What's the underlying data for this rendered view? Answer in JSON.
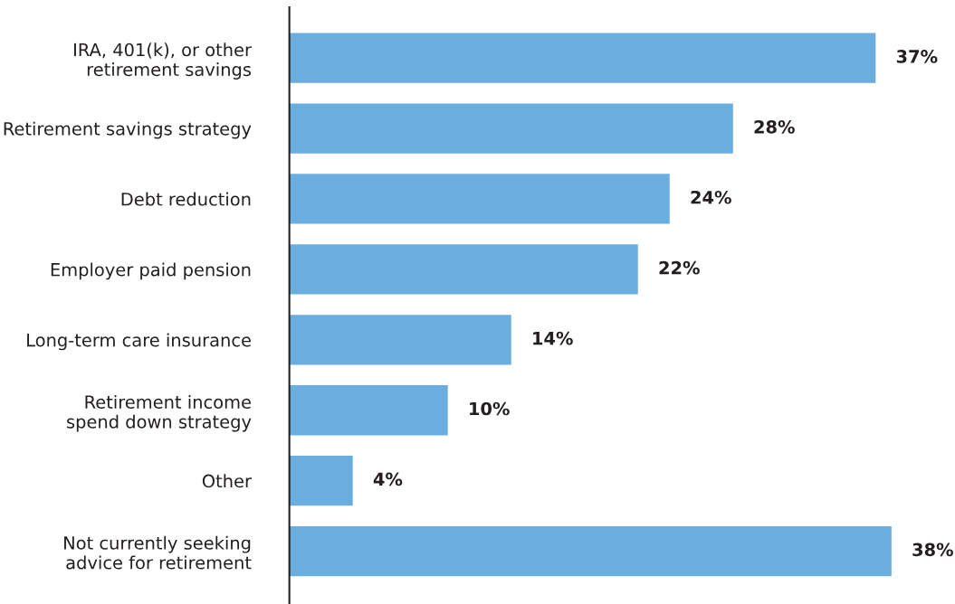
{
  "chart_data": {
    "type": "bar",
    "orientation": "horizontal",
    "categories": [
      "IRA, 401(k), or other\nretirement savings",
      "Retirement savings strategy",
      "Debt reduction",
      "Employer paid pension",
      "Long-term care insurance",
      "Retirement income\nspend down strategy",
      "Other",
      "Not currently seeking\nadvice for retirement"
    ],
    "values": [
      37,
      28,
      24,
      22,
      14,
      10,
      4,
      38
    ],
    "value_labels": [
      "37%",
      "28%",
      "24%",
      "22%",
      "14%",
      "10%",
      "4%",
      "38%"
    ],
    "color": "#6aaddf",
    "tick_labels": "y",
    "grid": false,
    "legend": false
  }
}
